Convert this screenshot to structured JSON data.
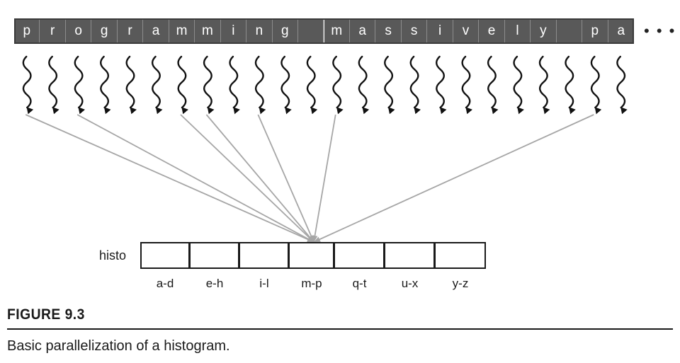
{
  "input": {
    "chars": [
      "p",
      "r",
      "o",
      "g",
      "r",
      "a",
      "m",
      "m",
      "i",
      "n",
      "g",
      "",
      "m",
      "a",
      "s",
      "s",
      "i",
      "v",
      "e",
      "l",
      "y",
      "",
      "p",
      "a"
    ],
    "ellipsis": "• • •"
  },
  "threads": {
    "count": 24,
    "icon": "wavy-arrow-icon",
    "mapped": [
      {
        "char_index": 0,
        "bin_index": 3
      },
      {
        "char_index": 2,
        "bin_index": 3
      },
      {
        "char_index": 6,
        "bin_index": 3
      },
      {
        "char_index": 7,
        "bin_index": 3
      },
      {
        "char_index": 9,
        "bin_index": 3
      },
      {
        "char_index": 12,
        "bin_index": 3
      },
      {
        "char_index": 22,
        "bin_index": 3
      }
    ],
    "arrow_color": "#a6a6a6"
  },
  "histogram": {
    "label": "histo",
    "bins": [
      "a-d",
      "e-h",
      "i-l",
      "m-p",
      "q-t",
      "u-x",
      "y-z"
    ]
  },
  "caption": {
    "figure_label": "FIGURE 9.3",
    "text": "Basic parallelization of a histogram."
  },
  "colors": {
    "cell_fill": "#595959",
    "cell_text": "#ffffff",
    "thread": "#111111"
  }
}
